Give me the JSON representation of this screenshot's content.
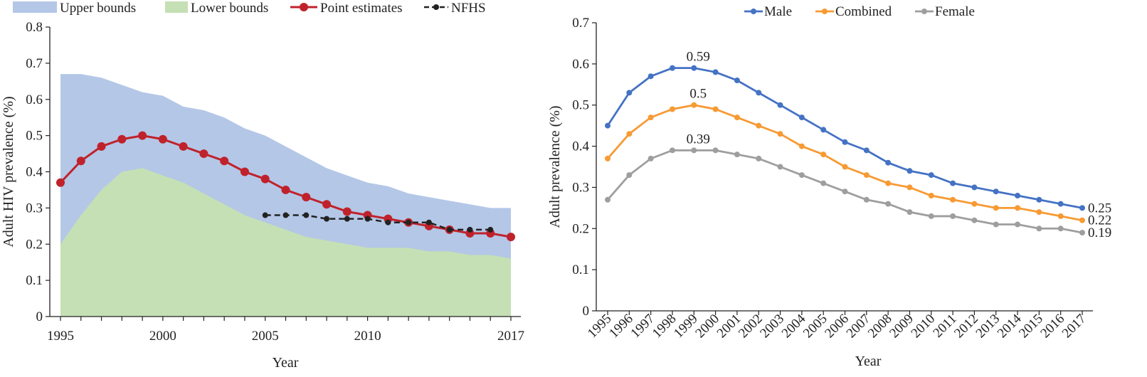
{
  "chart_data": [
    {
      "type": "area",
      "xlabel": "Year",
      "ylabel": "Adult HIV prevalence (%)",
      "xlim": [
        1995,
        2017
      ],
      "ylim": [
        0,
        0.8
      ],
      "x_ticks": [
        "1995",
        "2000",
        "2005",
        "2010",
        "2017"
      ],
      "y_ticks": [
        "0",
        "0.1",
        "0.2",
        "0.3",
        "0.4",
        "0.5",
        "0.6",
        "0.7",
        "0.8"
      ],
      "legend_position": "top",
      "x": [
        1995,
        1996,
        1997,
        1998,
        1999,
        2000,
        2001,
        2002,
        2003,
        2004,
        2005,
        2006,
        2007,
        2008,
        2009,
        2010,
        2011,
        2012,
        2013,
        2014,
        2015,
        2016,
        2017
      ],
      "series": [
        {
          "name": "Upper bounds",
          "kind": "area",
          "color": "#b4c7e7",
          "values": [
            0.67,
            0.67,
            0.66,
            0.64,
            0.62,
            0.61,
            0.58,
            0.57,
            0.55,
            0.52,
            0.5,
            0.47,
            0.44,
            0.41,
            0.39,
            0.37,
            0.36,
            0.34,
            0.33,
            0.32,
            0.31,
            0.3,
            0.3
          ]
        },
        {
          "name": "Lower bounds",
          "kind": "area",
          "color": "#c5e0b4",
          "values": [
            0.2,
            0.28,
            0.35,
            0.4,
            0.41,
            0.39,
            0.37,
            0.34,
            0.31,
            0.28,
            0.26,
            0.24,
            0.22,
            0.21,
            0.2,
            0.19,
            0.19,
            0.19,
            0.18,
            0.18,
            0.17,
            0.17,
            0.16
          ]
        },
        {
          "name": "Point estimates",
          "kind": "line",
          "color": "#c0222b",
          "values": [
            0.37,
            0.43,
            0.47,
            0.49,
            0.5,
            0.49,
            0.47,
            0.45,
            0.43,
            0.4,
            0.38,
            0.35,
            0.33,
            0.31,
            0.29,
            0.28,
            0.27,
            0.26,
            0.25,
            0.24,
            0.23,
            0.23,
            0.22
          ]
        },
        {
          "name": "NFHS",
          "kind": "dashed",
          "color": "#222222",
          "x": [
            2005,
            2006,
            2007,
            2008,
            2009,
            2010,
            2011,
            2012,
            2013,
            2014,
            2015,
            2016
          ],
          "values": [
            0.28,
            0.28,
            0.28,
            0.27,
            0.27,
            0.27,
            0.26,
            0.26,
            0.26,
            0.24,
            0.24,
            0.24
          ]
        }
      ]
    },
    {
      "type": "line",
      "xlabel": "Year",
      "ylabel": "Adult prevalence (%)",
      "ylim": [
        0,
        0.7
      ],
      "y_ticks": [
        "0",
        "0.1",
        "0.2",
        "0.3",
        "0.4",
        "0.5",
        "0.6",
        "0.7"
      ],
      "legend_position": "top",
      "categories": [
        "1995",
        "1996",
        "1997",
        "1998",
        "1999",
        "2000",
        "2001",
        "2002",
        "2003",
        "2004",
        "2005",
        "2006",
        "2007",
        "2008",
        "2009",
        "2010",
        "2011",
        "2012",
        "2013",
        "2014",
        "2015",
        "2016",
        "2017"
      ],
      "series": [
        {
          "name": "Male",
          "color": "#4472c4",
          "values": [
            0.45,
            0.53,
            0.57,
            0.59,
            0.59,
            0.58,
            0.56,
            0.53,
            0.5,
            0.47,
            0.44,
            0.41,
            0.39,
            0.36,
            0.34,
            0.33,
            0.31,
            0.3,
            0.29,
            0.28,
            0.27,
            0.26,
            0.25
          ]
        },
        {
          "name": "Combined",
          "color": "#f79a33",
          "values": [
            0.37,
            0.43,
            0.47,
            0.49,
            0.5,
            0.49,
            0.47,
            0.45,
            0.43,
            0.4,
            0.38,
            0.35,
            0.33,
            0.31,
            0.3,
            0.28,
            0.27,
            0.26,
            0.25,
            0.25,
            0.24,
            0.23,
            0.22
          ]
        },
        {
          "name": "Female",
          "color": "#9e9e9e",
          "values": [
            0.27,
            0.33,
            0.37,
            0.39,
            0.39,
            0.39,
            0.38,
            0.37,
            0.35,
            0.33,
            0.31,
            0.29,
            0.27,
            0.26,
            0.24,
            0.23,
            0.23,
            0.22,
            0.21,
            0.21,
            0.2,
            0.2,
            0.19
          ]
        }
      ],
      "annotations": [
        {
          "text": "0.59",
          "series": "Male",
          "category": "1999",
          "position": "above"
        },
        {
          "text": "0.5",
          "series": "Combined",
          "category": "1999",
          "position": "above"
        },
        {
          "text": "0.39",
          "series": "Female",
          "category": "1999",
          "position": "above"
        },
        {
          "text": "0.25",
          "series": "Male",
          "category": "2017",
          "position": "right"
        },
        {
          "text": "0.22",
          "series": "Combined",
          "category": "2017",
          "position": "right"
        },
        {
          "text": "0.19",
          "series": "Female",
          "category": "2017",
          "position": "right"
        }
      ]
    }
  ]
}
